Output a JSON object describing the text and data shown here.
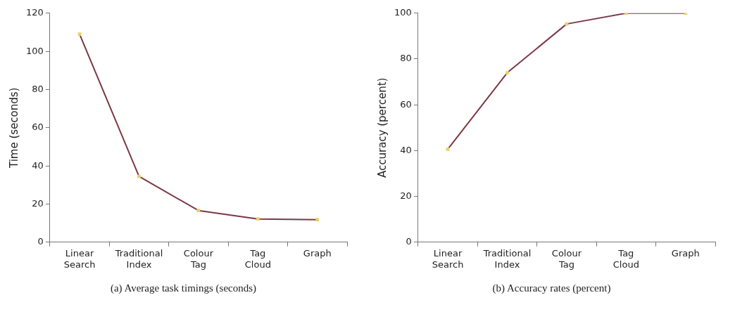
{
  "chart_data": [
    {
      "type": "line",
      "title": "(a) Average task timings (seconds)",
      "ylabel": "Time (seconds)",
      "categories": [
        "Linear Search",
        "Traditional Index",
        "Colour Tag",
        "Tag Cloud",
        "Graph"
      ],
      "series": [
        {
          "color": "#7b3846",
          "values": [
            109,
            34.5,
            16.6,
            12.2,
            11.8
          ]
        }
      ],
      "ylim": [
        0,
        120
      ],
      "yticks": [
        0,
        20,
        40,
        60,
        80,
        100,
        120
      ],
      "marker": "square",
      "legend": false
    },
    {
      "type": "line",
      "title": "(b) Accuracy rates (percent)",
      "ylabel": "Accuracy (percent)",
      "categories": [
        "Linear Search",
        "Traditional Index",
        "Colour Tag",
        "Tag Cloud",
        "Graph"
      ],
      "series": [
        {
          "color": "#7b3846",
          "values": [
            40.6,
            74,
            95.3,
            100,
            100
          ]
        }
      ],
      "ylim": [
        0,
        100
      ],
      "yticks": [
        0,
        20,
        40,
        60,
        80,
        100
      ],
      "marker": "square",
      "legend": false
    }
  ]
}
